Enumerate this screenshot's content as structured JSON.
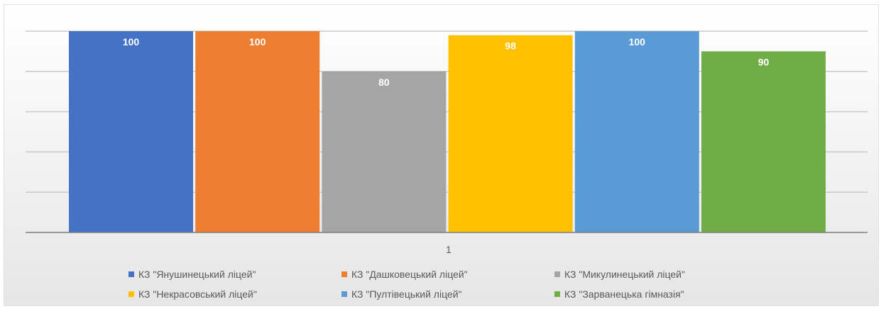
{
  "chart_data": {
    "type": "bar",
    "categories": [
      "1"
    ],
    "ylim": [
      0,
      100
    ],
    "grid": true,
    "legend_position": "bottom",
    "series": [
      {
        "name": "КЗ \"Янушинецький ліцей\"",
        "values": [
          100
        ],
        "color": "#4472c4"
      },
      {
        "name": "КЗ \"Дашковецький ліцей\"",
        "values": [
          100
        ],
        "color": "#ed7d31"
      },
      {
        "name": "КЗ \"Микулинецький ліцей\"",
        "values": [
          80
        ],
        "color": "#a5a5a5"
      },
      {
        "name": "КЗ \"Некрасовський ліцей\"",
        "values": [
          98
        ],
        "color": "#ffc000"
      },
      {
        "name": "КЗ \"Пултівецький ліцей\"",
        "values": [
          100
        ],
        "color": "#5b9bd5"
      },
      {
        "name": "КЗ \"Зарванецька гімназія\"",
        "values": [
          90
        ],
        "color": "#70ad47"
      }
    ]
  }
}
